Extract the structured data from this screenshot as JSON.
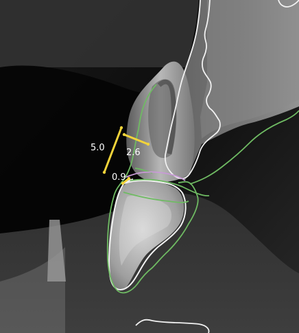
{
  "scan": {
    "measurements": [
      {
        "value": "5.0",
        "color": "#f1d33a"
      },
      {
        "value": "2.6",
        "color": "#f1d33a"
      },
      {
        "value": "0.9",
        "color": "#f1d33a"
      }
    ],
    "colors": {
      "tooth_outline": "#f4f4f4",
      "soft_tissue_outline": "#6fbb63",
      "crown_junction": "#c89ad6",
      "measure_line": "#f1d33a",
      "text": "#ffffff"
    }
  }
}
